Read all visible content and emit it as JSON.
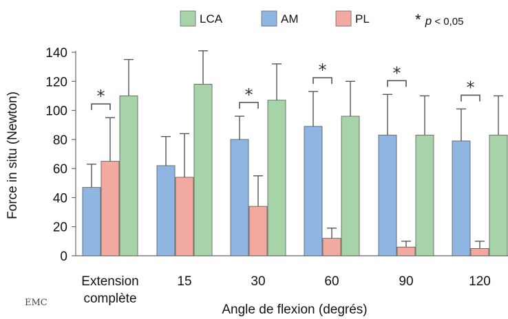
{
  "chart_data": {
    "type": "bar",
    "categories": [
      [
        "Extension",
        "complète"
      ],
      [
        "15"
      ],
      [
        "30"
      ],
      [
        "60"
      ],
      [
        "90"
      ],
      [
        "120"
      ]
    ],
    "series": [
      {
        "name": "AM",
        "color": "#8fb5e3",
        "values": [
          47,
          62,
          80,
          89,
          83,
          79
        ],
        "error_upper": [
          63,
          82,
          96,
          113,
          111,
          101
        ]
      },
      {
        "name": "PL",
        "color": "#f2a9a0",
        "values": [
          65,
          54,
          34,
          12,
          6,
          5
        ],
        "error_upper": [
          95,
          84,
          55,
          19,
          10,
          10
        ]
      },
      {
        "name": "LCA",
        "color": "#a6d4a8",
        "values": [
          110,
          118,
          107,
          96,
          83,
          83
        ],
        "error_upper": [
          135,
          141,
          132,
          120,
          110,
          110
        ]
      }
    ],
    "legend_order": [
      "LCA",
      "AM",
      "PL"
    ],
    "legend_position": "top",
    "significance": {
      "marker": "*",
      "label_italic": "p",
      "label_rest": " < 0,05",
      "categories": [
        0,
        2,
        3,
        4,
        5
      ]
    },
    "xlabel": "Angle de flexion (degrés)",
    "ylabel": "Force in situ (Newton)",
    "ylim": [
      0,
      140
    ],
    "yticks": [
      0,
      20,
      40,
      60,
      80,
      100,
      120,
      140
    ],
    "grid": false
  },
  "credit": "EMC"
}
